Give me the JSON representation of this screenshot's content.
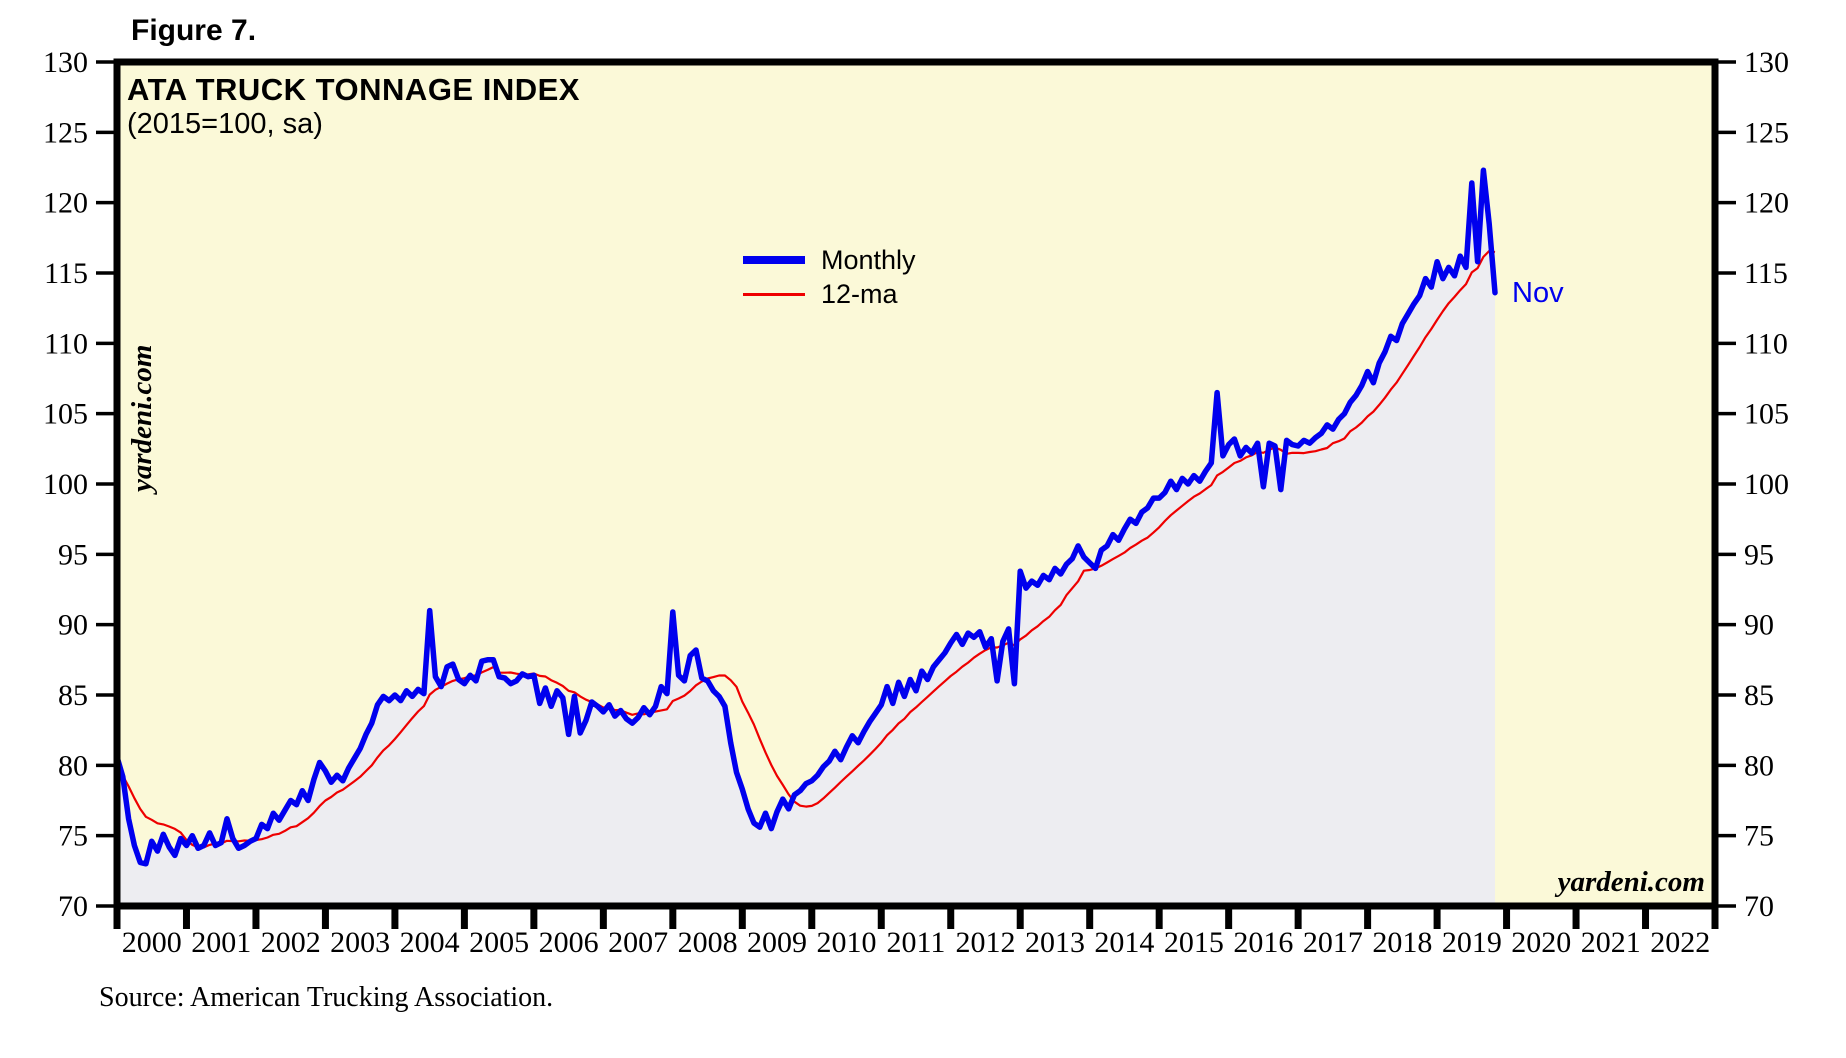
{
  "figure_label": "Figure 7.",
  "chart": {
    "title": "ATA TRUCK TONNAGE INDEX",
    "subtitle": "(2015=100, sa)",
    "legend": [
      {
        "label": "Monthly",
        "color": "#0000ee"
      },
      {
        "label": "12-ma",
        "color": "#ee0000"
      }
    ],
    "annotation": {
      "text": "Nov",
      "color": "#0000ee"
    },
    "watermark": "yardeni.com",
    "source": "Source: American Trucking Association."
  },
  "chart_data": {
    "type": "line",
    "title": "ATA TRUCK TONNAGE INDEX",
    "subtitle": "(2015=100, sa)",
    "xlim": [
      2000,
      2023
    ],
    "ylim": [
      70,
      130
    ],
    "grid": false,
    "legend_position": "upper-middle-left",
    "y_ticks": [
      70,
      75,
      80,
      85,
      90,
      95,
      100,
      105,
      110,
      115,
      120,
      125,
      130
    ],
    "x_tick_years": [
      2000,
      2001,
      2002,
      2003,
      2004,
      2005,
      2006,
      2007,
      2008,
      2009,
      2010,
      2011,
      2012,
      2013,
      2014,
      2015,
      2016,
      2017,
      2018,
      2019,
      2020,
      2021,
      2022
    ],
    "start": "2000-01",
    "end": "2019-11",
    "last_point_label": "Nov",
    "plot_bg": "#fbf9d8",
    "area_fill": "#ededf1",
    "series": [
      {
        "name": "Monthly",
        "color": "#0000ee",
        "width": 5.5,
        "values": [
          80.6,
          79.2,
          76.2,
          74.3,
          73.1,
          73.0,
          74.6,
          73.9,
          75.1,
          74.2,
          73.6,
          74.8,
          74.3,
          75.0,
          74.1,
          74.3,
          75.2,
          74.3,
          74.5,
          76.2,
          74.8,
          74.1,
          74.3,
          74.6,
          74.8,
          75.8,
          75.5,
          76.6,
          76.1,
          76.8,
          77.5,
          77.2,
          78.2,
          77.5,
          79.0,
          80.2,
          79.6,
          78.8,
          79.3,
          78.9,
          79.8,
          80.5,
          81.2,
          82.2,
          83.0,
          84.3,
          84.9,
          84.6,
          85.0,
          84.6,
          85.3,
          84.9,
          85.4,
          85.1,
          91.0,
          86.3,
          85.6,
          87.0,
          87.2,
          86.1,
          85.8,
          86.4,
          86.0,
          87.4,
          87.5,
          87.5,
          86.3,
          86.2,
          85.8,
          86.0,
          86.5,
          86.3,
          86.4,
          84.4,
          85.5,
          84.2,
          85.3,
          84.8,
          82.2,
          84.9,
          82.3,
          83.2,
          84.5,
          84.2,
          83.8,
          84.3,
          83.5,
          83.9,
          83.3,
          83.0,
          83.4,
          84.1,
          83.6,
          84.2,
          85.6,
          85.1,
          90.9,
          86.4,
          86.0,
          87.8,
          88.2,
          86.2,
          86.0,
          85.3,
          84.9,
          84.2,
          81.6,
          79.5,
          78.3,
          76.9,
          75.9,
          75.6,
          76.6,
          75.5,
          76.7,
          77.6,
          76.9,
          77.9,
          78.2,
          78.7,
          78.9,
          79.3,
          79.9,
          80.3,
          81.0,
          80.4,
          81.3,
          82.1,
          81.6,
          82.4,
          83.1,
          83.7,
          84.3,
          85.6,
          84.4,
          85.9,
          84.9,
          86.1,
          85.3,
          86.7,
          86.1,
          87.0,
          87.5,
          88.0,
          88.7,
          89.3,
          88.6,
          89.4,
          89.1,
          89.5,
          88.4,
          89.0,
          86.0,
          88.8,
          89.7,
          85.8,
          93.8,
          92.6,
          93.1,
          92.8,
          93.5,
          93.2,
          94.0,
          93.6,
          94.3,
          94.7,
          95.6,
          94.8,
          94.4,
          94.0,
          95.3,
          95.6,
          96.4,
          96.0,
          96.8,
          97.5,
          97.2,
          98.0,
          98.3,
          99.0,
          99.0,
          99.4,
          100.2,
          99.6,
          100.4,
          100.0,
          100.6,
          100.2,
          100.9,
          101.5,
          106.5,
          102.0,
          102.8,
          103.2,
          102.0,
          102.6,
          102.2,
          102.9,
          99.8,
          102.9,
          102.7,
          99.6,
          103.1,
          102.8,
          102.7,
          103.1,
          102.9,
          103.3,
          103.6,
          104.2,
          103.9,
          104.6,
          105.0,
          105.8,
          106.3,
          107.0,
          108.0,
          107.2,
          108.6,
          109.4,
          110.5,
          110.2,
          111.4,
          112.1,
          112.8,
          113.4,
          114.6,
          114.0,
          115.8,
          114.6,
          115.4,
          114.8,
          116.2,
          115.4,
          121.4,
          115.8,
          122.3,
          118.5,
          113.6
        ]
      },
      {
        "name": "12-ma",
        "color": "#ee0000",
        "width": 2.2,
        "derived": "trailing 12-month moving average of Monthly",
        "seed_prev_value": 78.0
      }
    ]
  }
}
